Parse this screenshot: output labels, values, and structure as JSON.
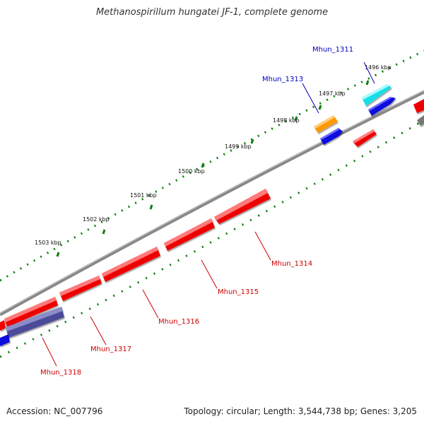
{
  "title": "Methanospirillum hungatei JF-1, complete genome",
  "footer": {
    "accession": "Accession: NC_007796",
    "info": "Topology: circular; Length: 3,544,738 bp; Genes: 3,205"
  },
  "scale_labels": [
    "1496 kbp",
    "1497 kbp",
    "1498 kbp",
    "1499 kbp",
    "1500 kbp",
    "1501 kbp",
    "1502 kbp",
    "1503 kbp"
  ],
  "gene_labels": {
    "Mhun_1311": "Mhun_1311",
    "Mhun_1313": "Mhun_1313",
    "Mhun_1314": "Mhun_1314",
    "Mhun_1315": "Mhun_1315",
    "Mhun_1316": "Mhun_1316",
    "Mhun_1317": "Mhun_1317",
    "Mhun_1318": "Mhun_1318"
  },
  "colors": {
    "backbone": "#808080",
    "red_gene": "#ee0000",
    "blue_gene": "#1010dd",
    "cyan_gene": "#10e0e8",
    "orange_gene": "#ff9900",
    "navy_gene": "#4b4b9a",
    "gray_gene": "#777777",
    "tick": "#0a7d0a",
    "label_red": "#cc0000",
    "label_blue": "#0000bb"
  }
}
